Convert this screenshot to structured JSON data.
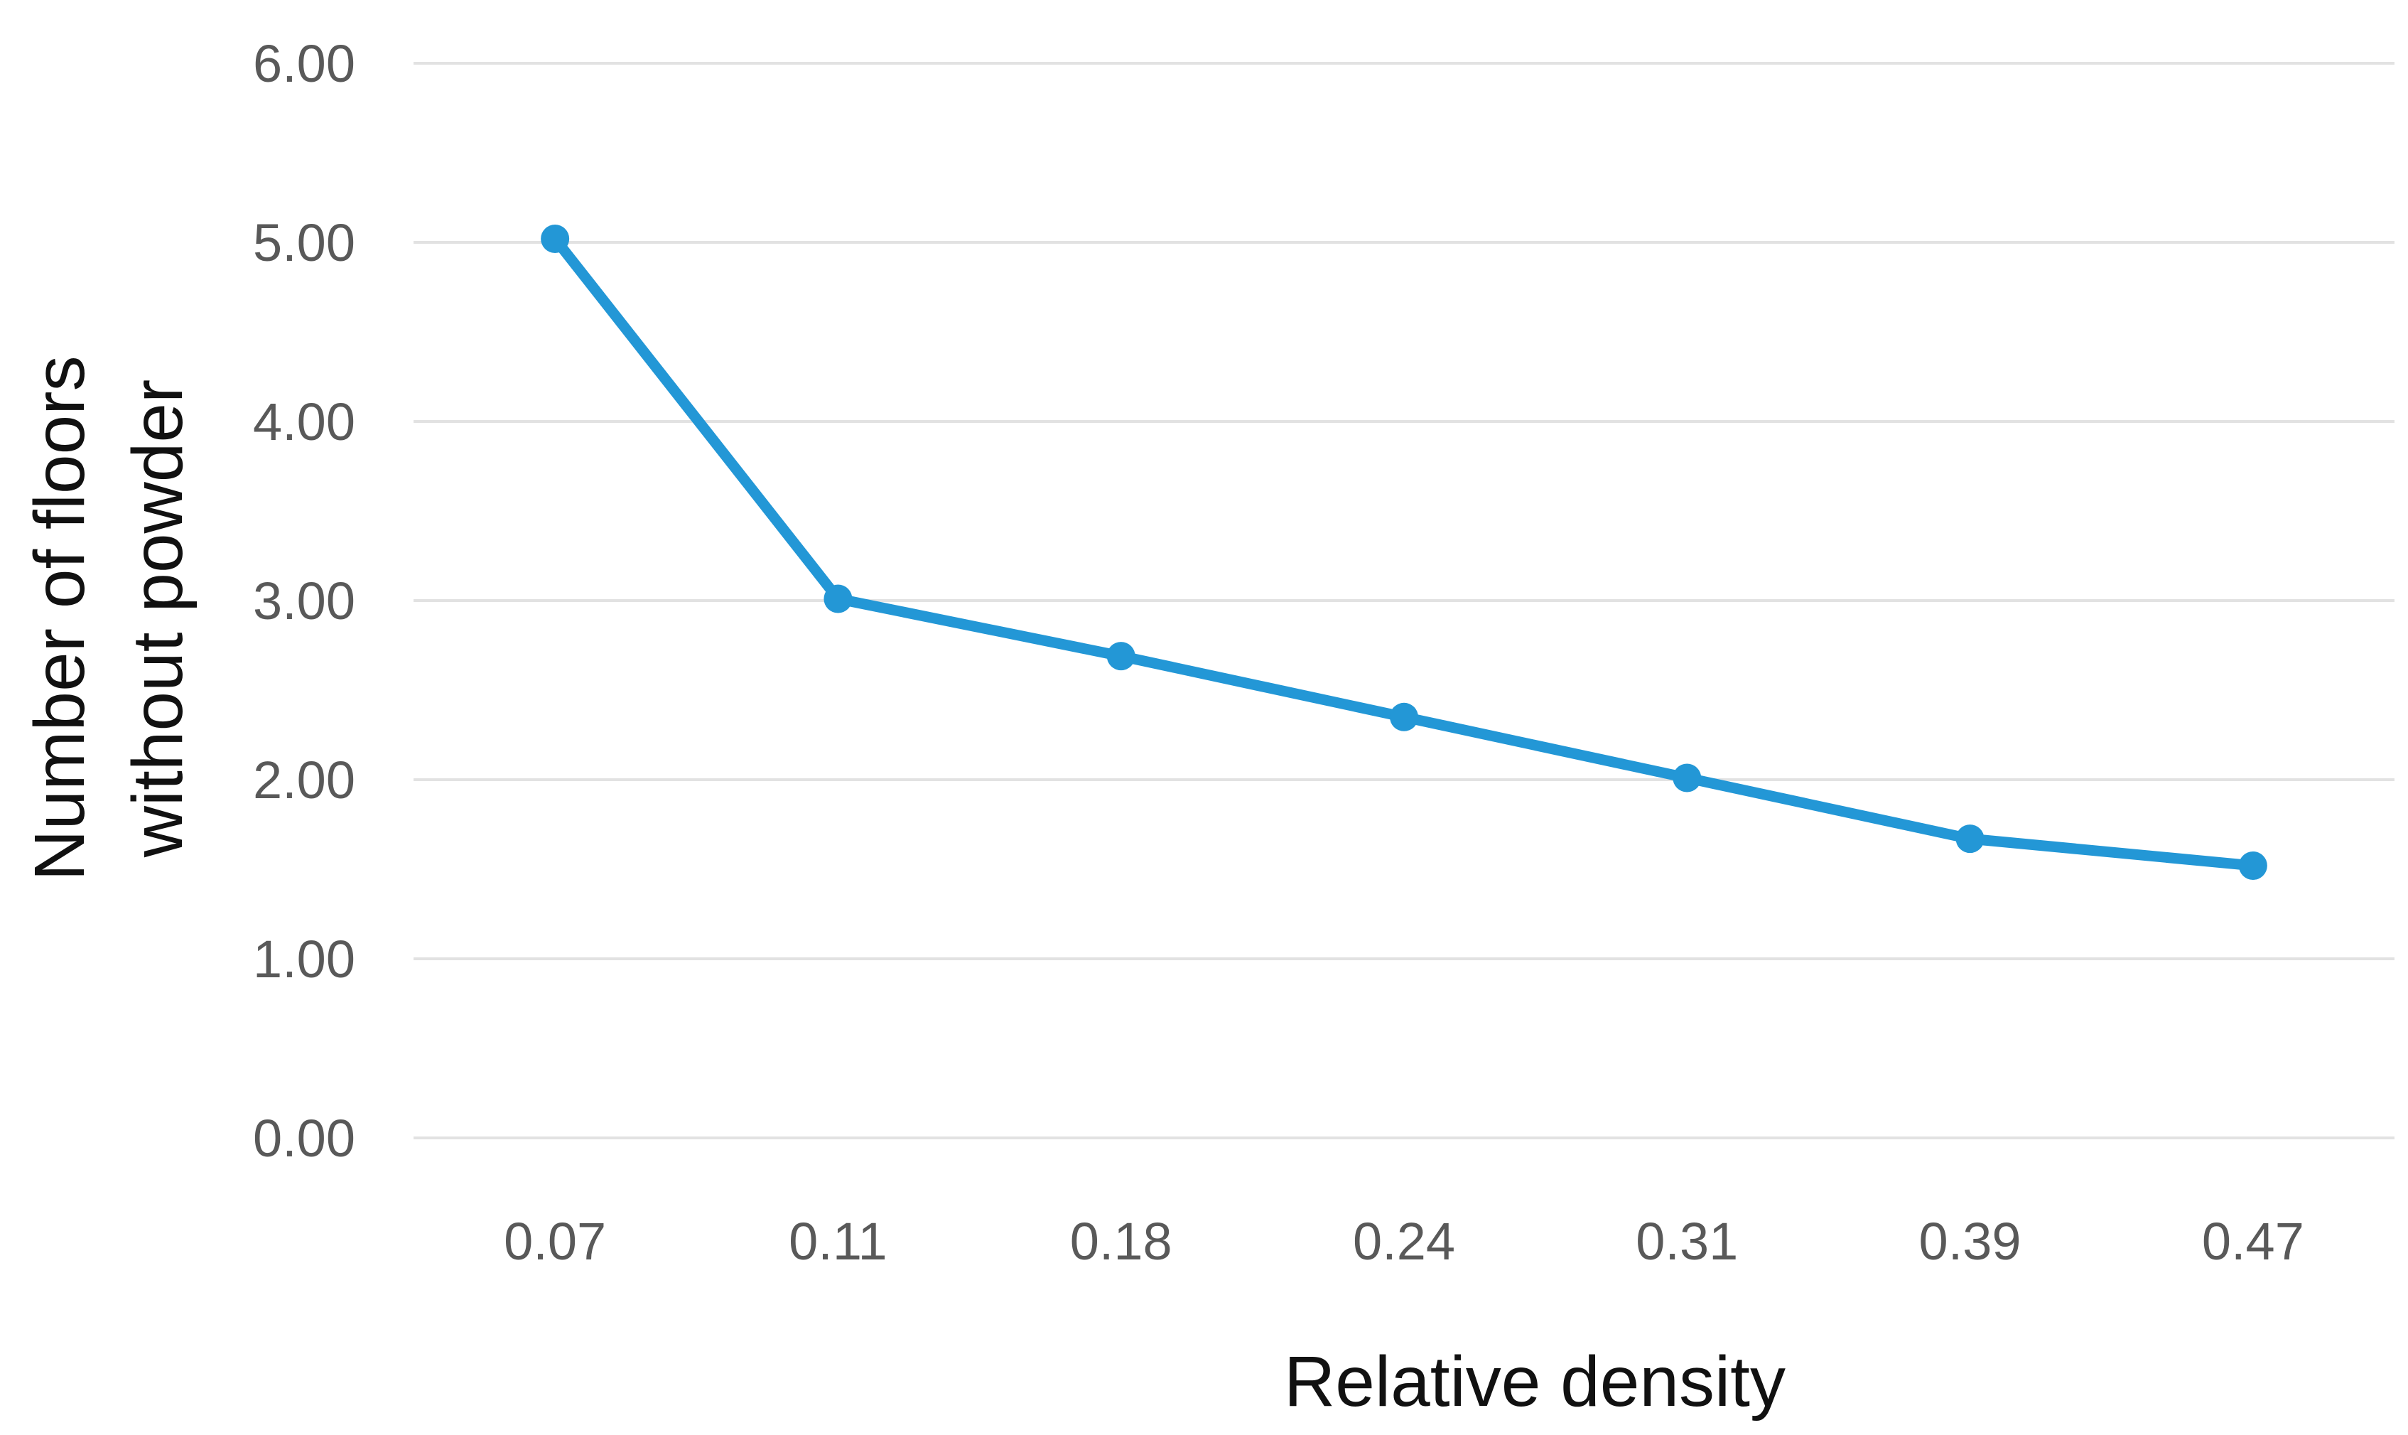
{
  "chart_data": {
    "type": "line",
    "categories": [
      "0.07",
      "0.11",
      "0.18",
      "0.24",
      "0.31",
      "0.39",
      "0.47"
    ],
    "series": [
      {
        "name": "Number of floors without powder",
        "values": [
          5.02,
          3.01,
          2.69,
          2.35,
          2.01,
          1.67,
          1.52
        ]
      }
    ],
    "xlabel": "Relative density",
    "ylabel": "Number of floors without powder",
    "ylabel_line1": "Number of floors",
    "ylabel_line2": "without powder",
    "y_ticks": [
      "0.00",
      "1.00",
      "2.00",
      "3.00",
      "4.00",
      "5.00",
      "6.00"
    ],
    "ylim": [
      0,
      6
    ],
    "grid": "horizontal-only",
    "legend": "none",
    "marker": "circle",
    "line_color": "#2397D6",
    "gridline_color": "#E2E2E2",
    "tick_label_color": "#595959",
    "axis_title_color": "#111111"
  }
}
